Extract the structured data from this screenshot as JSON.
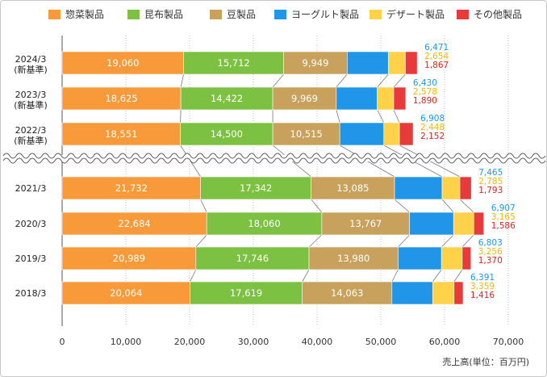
{
  "legend": [
    {
      "name": "惣菜製品",
      "color": "#f89a3a"
    },
    {
      "name": "昆布製品",
      "color": "#7cc142"
    },
    {
      "name": "豆製品",
      "color": "#c8a25c"
    },
    {
      "name": "ヨーグルト製品",
      "color": "#2196e8"
    },
    {
      "name": "デザート製品",
      "color": "#ffd24a"
    },
    {
      "name": "その他製品",
      "color": "#e83a3a"
    }
  ],
  "unit_label": "売上高(単位：百万円)",
  "chart_data": {
    "type": "bar",
    "orientation": "horizontal",
    "stacked": true,
    "xlim": [
      0,
      70000
    ],
    "xticks": [
      "0",
      "10,000",
      "20,000",
      "30,000",
      "40,000",
      "50,000",
      "60,000",
      "70,000"
    ],
    "grid": true,
    "legend_position": "top",
    "axis_break": "between 2022/3 and 2021/3",
    "categories": [
      {
        "line1": "2024/3",
        "line2": "(新基準)"
      },
      {
        "line1": "2023/3",
        "line2": "(新基準)"
      },
      {
        "line1": "2022/3",
        "line2": "(新基準)"
      },
      {
        "line1": "2021/3",
        "line2": ""
      },
      {
        "line1": "2020/3",
        "line2": ""
      },
      {
        "line1": "2019/3",
        "line2": ""
      },
      {
        "line1": "2018/3",
        "line2": ""
      }
    ],
    "series": [
      {
        "name": "惣菜製品",
        "color": "#f89a3a",
        "values": [
          19060,
          18625,
          18551,
          21732,
          22684,
          20989,
          20064
        ],
        "labels": [
          "19,060",
          "18,625",
          "18,551",
          "21,732",
          "22,684",
          "20,989",
          "20,064"
        ]
      },
      {
        "name": "昆布製品",
        "color": "#7cc142",
        "values": [
          15712,
          14422,
          14500,
          17342,
          18060,
          17746,
          17619
        ],
        "labels": [
          "15,712",
          "14,422",
          "14,500",
          "17,342",
          "18,060",
          "17,746",
          "17,619"
        ]
      },
      {
        "name": "豆製品",
        "color": "#c8a25c",
        "values": [
          9949,
          9969,
          10515,
          13085,
          13767,
          13980,
          14063
        ],
        "labels": [
          "9,949",
          "9,969",
          "10,515",
          "13,085",
          "13,767",
          "13,980",
          "14,063"
        ]
      },
      {
        "name": "ヨーグルト製品",
        "color": "#2196e8",
        "values": [
          6471,
          6430,
          6908,
          7465,
          6907,
          6803,
          6391
        ],
        "labels": [
          "6,471",
          "6,430",
          "6,908",
          "7,465",
          "6,907",
          "6,803",
          "6,391"
        ]
      },
      {
        "name": "デザート製品",
        "color": "#ffd24a",
        "values": [
          2654,
          2578,
          2448,
          2785,
          3165,
          3256,
          3359
        ],
        "labels": [
          "2,654",
          "2,578",
          "2,448",
          "2,785",
          "3,165",
          "3,256",
          "3,359"
        ]
      },
      {
        "name": "その他製品",
        "color": "#e83a3a",
        "values": [
          1867,
          1890,
          2152,
          1793,
          1586,
          1370,
          1416
        ],
        "labels": [
          "1,867",
          "1,890",
          "2,152",
          "1,793",
          "1,586",
          "1,370",
          "1,416"
        ]
      }
    ],
    "label_colors": {
      "inside": "#ffffff",
      "yogurt": "#2196e8",
      "dessert": "#f5b800",
      "other": "#e02020"
    }
  }
}
